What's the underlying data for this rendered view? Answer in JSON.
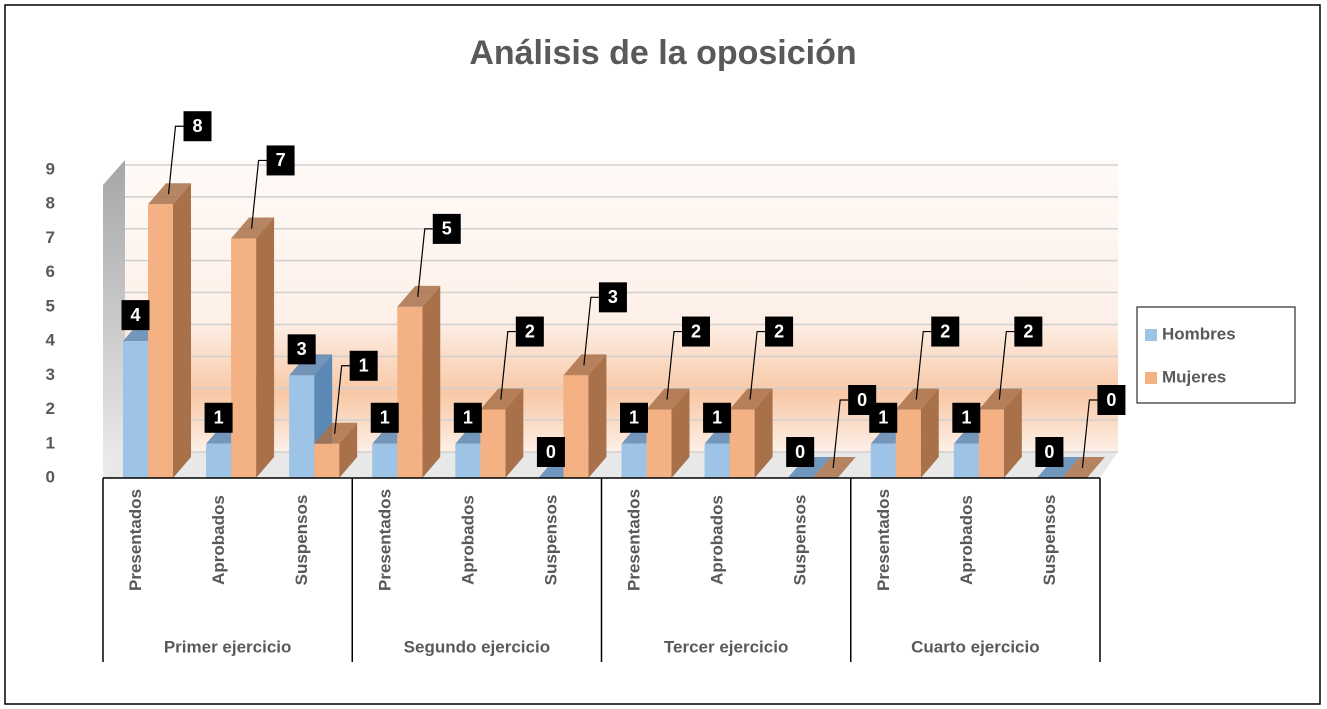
{
  "chart_data": {
    "type": "bar3d",
    "title": "Análisis de la oposición",
    "groups": [
      {
        "name": "Primer ejercicio",
        "categories": [
          "Presentados",
          "Aprobados",
          "Suspensos"
        ]
      },
      {
        "name": "Segundo ejercicio",
        "categories": [
          "Presentados",
          "Aprobados",
          "Suspensos"
        ]
      },
      {
        "name": "Tercer ejercicio",
        "categories": [
          "Presentados",
          "Aprobados",
          "Suspensos"
        ]
      },
      {
        "name": "Cuarto ejercicio",
        "categories": [
          "Presentados",
          "Aprobados",
          "Suspensos"
        ]
      }
    ],
    "series": [
      {
        "name": "Hombres",
        "color": "#9dc3e6",
        "side": "#5b88b5",
        "values": [
          4,
          1,
          3,
          1,
          1,
          0,
          1,
          1,
          0,
          1,
          1,
          0
        ]
      },
      {
        "name": "Mujeres",
        "color": "#f4b183",
        "side": "#a9714a",
        "values": [
          8,
          7,
          1,
          5,
          2,
          3,
          2,
          2,
          0,
          2,
          2,
          0
        ]
      }
    ],
    "ylim": [
      0,
      9
    ],
    "yticks": [
      0,
      1,
      2,
      3,
      4,
      5,
      6,
      7,
      8,
      9
    ],
    "grid": true,
    "legend": "right"
  }
}
